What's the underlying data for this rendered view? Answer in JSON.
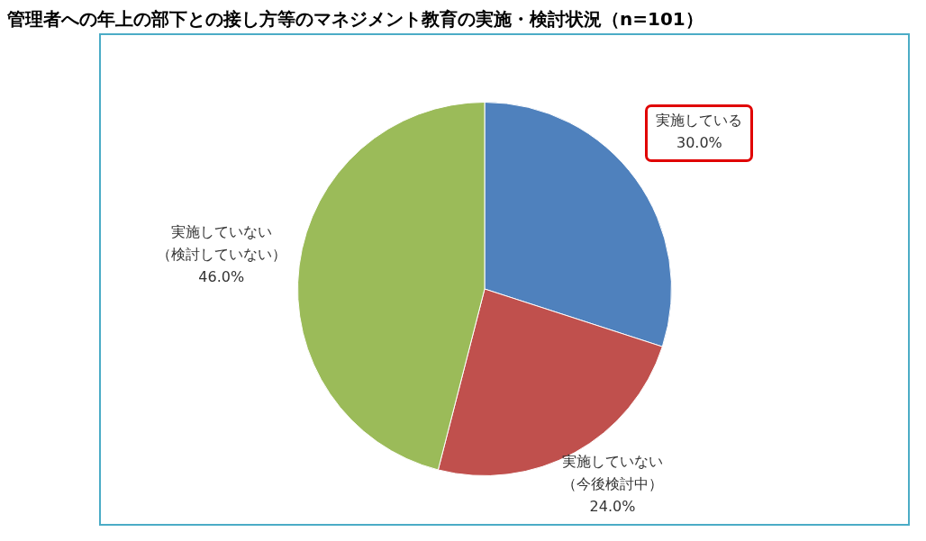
{
  "chart_data": {
    "type": "pie",
    "title": "管理者への年上の部下との接し方等のマネジメント教育の実施・検討状況（n=101）",
    "categories": [
      "実施している",
      "実施していない（今後検討中）",
      "実施していない（検討していない）"
    ],
    "values": [
      30,
      24,
      46
    ],
    "colors": [
      "#4f81bd",
      "#c0504d",
      "#9bbb59"
    ],
    "value_labels": [
      "30.0%",
      "24.0%",
      "46.0%"
    ],
    "legend": false
  }
}
